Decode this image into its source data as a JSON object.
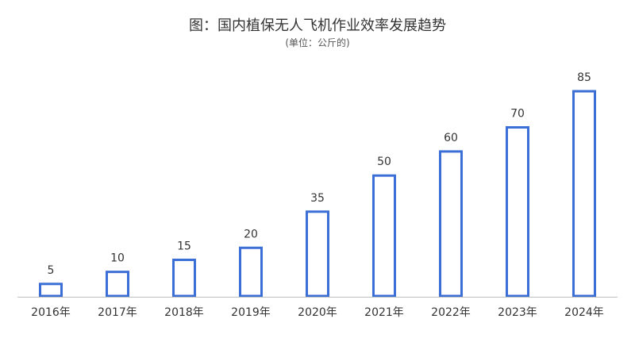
{
  "chart_data": {
    "type": "bar",
    "title": "图：国内植保无人飞机作业效率发展趋势",
    "subtitle": "(单位：公斤的)",
    "categories": [
      "2016年",
      "2017年",
      "2018年",
      "2019年",
      "2020年",
      "2021年",
      "2022年",
      "2023年",
      "2024年"
    ],
    "values": [
      5,
      10,
      15,
      20,
      35,
      50,
      60,
      70,
      85
    ],
    "ylim": [
      0,
      85
    ],
    "grid": false,
    "legend": "none",
    "colors": {
      "bar_stroke": "#3B6FD6",
      "bar_fill": "#ffffff",
      "axis": "#bfbfbf"
    }
  }
}
